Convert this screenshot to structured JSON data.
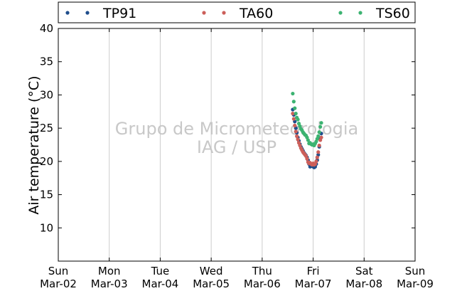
{
  "chart_data": {
    "type": "scatter",
    "ylabel": "Air temperature (°C)",
    "xlabel": "",
    "ylim": [
      5,
      40
    ],
    "yticks": [
      10,
      15,
      20,
      25,
      30,
      35,
      40
    ],
    "xlim": [
      0,
      7
    ],
    "xticks": [
      {
        "x": 0,
        "day": "Sun",
        "date": "Mar-02"
      },
      {
        "x": 1,
        "day": "Mon",
        "date": "Mar-03"
      },
      {
        "x": 2,
        "day": "Tue",
        "date": "Mar-04"
      },
      {
        "x": 3,
        "day": "Wed",
        "date": "Mar-05"
      },
      {
        "x": 4,
        "day": "Thu",
        "date": "Mar-06"
      },
      {
        "x": 5,
        "day": "Fri",
        "date": "Mar-07"
      },
      {
        "x": 6,
        "day": "Sat",
        "date": "Mar-08"
      },
      {
        "x": 7,
        "day": "Sun",
        "date": "Mar-09"
      }
    ],
    "grid": "vertical",
    "legend_position": "top",
    "watermark": [
      "Grupo de Micrometeorologia",
      "IAG / USP"
    ],
    "series": [
      {
        "name": "TP91",
        "color": "#1f4e8c",
        "points": [
          [
            4.6,
            27.8
          ],
          [
            4.62,
            27.0
          ],
          [
            4.64,
            26.0
          ],
          [
            4.66,
            25.0
          ],
          [
            4.68,
            24.3
          ],
          [
            4.7,
            23.6
          ],
          [
            4.72,
            23.1
          ],
          [
            4.74,
            22.6
          ],
          [
            4.76,
            22.2
          ],
          [
            4.78,
            21.9
          ],
          [
            4.8,
            21.6
          ],
          [
            4.82,
            21.3
          ],
          [
            4.84,
            21.1
          ],
          [
            4.86,
            20.9
          ],
          [
            4.88,
            20.6
          ],
          [
            4.9,
            20.2
          ],
          [
            4.92,
            19.6
          ],
          [
            4.94,
            19.2
          ],
          [
            4.96,
            19.3
          ],
          [
            4.98,
            19.4
          ],
          [
            5.0,
            19.2
          ],
          [
            5.02,
            19.1
          ],
          [
            5.04,
            19.2
          ],
          [
            5.06,
            19.6
          ],
          [
            5.08,
            20.2
          ],
          [
            5.1,
            21.0
          ],
          [
            5.12,
            22.2
          ],
          [
            5.14,
            23.4
          ],
          [
            5.16,
            24.2
          ]
        ]
      },
      {
        "name": "TA60",
        "color": "#cc5f5a",
        "points": [
          [
            4.6,
            27.2
          ],
          [
            4.62,
            26.4
          ],
          [
            4.64,
            25.4
          ],
          [
            4.66,
            24.5
          ],
          [
            4.68,
            23.8
          ],
          [
            4.7,
            23.3
          ],
          [
            4.72,
            22.8
          ],
          [
            4.74,
            22.4
          ],
          [
            4.76,
            22.0
          ],
          [
            4.78,
            21.7
          ],
          [
            4.8,
            21.4
          ],
          [
            4.82,
            21.2
          ],
          [
            4.84,
            21.0
          ],
          [
            4.86,
            20.8
          ],
          [
            4.88,
            20.4
          ],
          [
            4.9,
            19.9
          ],
          [
            4.92,
            19.7
          ],
          [
            4.94,
            19.8
          ],
          [
            4.96,
            19.6
          ],
          [
            4.98,
            19.5
          ],
          [
            5.0,
            19.7
          ],
          [
            5.02,
            19.5
          ],
          [
            5.04,
            19.6
          ],
          [
            5.06,
            20.0
          ],
          [
            5.08,
            20.6
          ],
          [
            5.1,
            21.4
          ],
          [
            5.12,
            22.4
          ],
          [
            5.14,
            23.2
          ],
          [
            5.16,
            23.6
          ]
        ]
      },
      {
        "name": "TS60",
        "color": "#3cb371",
        "points": [
          [
            4.6,
            30.2
          ],
          [
            4.62,
            29.0
          ],
          [
            4.64,
            28.0
          ],
          [
            4.66,
            27.2
          ],
          [
            4.68,
            26.6
          ],
          [
            4.7,
            26.3
          ],
          [
            4.72,
            25.7
          ],
          [
            4.74,
            25.3
          ],
          [
            4.76,
            24.9
          ],
          [
            4.78,
            24.7
          ],
          [
            4.8,
            24.4
          ],
          [
            4.82,
            24.2
          ],
          [
            4.84,
            24.0
          ],
          [
            4.86,
            23.9
          ],
          [
            4.88,
            23.6
          ],
          [
            4.9,
            23.2
          ],
          [
            4.92,
            22.7
          ],
          [
            4.94,
            22.8
          ],
          [
            4.96,
            22.6
          ],
          [
            4.98,
            22.5
          ],
          [
            5.0,
            22.6
          ],
          [
            5.02,
            22.4
          ],
          [
            5.04,
            22.7
          ],
          [
            5.06,
            23.0
          ],
          [
            5.08,
            23.4
          ],
          [
            5.1,
            23.8
          ],
          [
            5.12,
            24.4
          ],
          [
            5.14,
            25.2
          ],
          [
            5.16,
            25.8
          ]
        ]
      }
    ]
  }
}
